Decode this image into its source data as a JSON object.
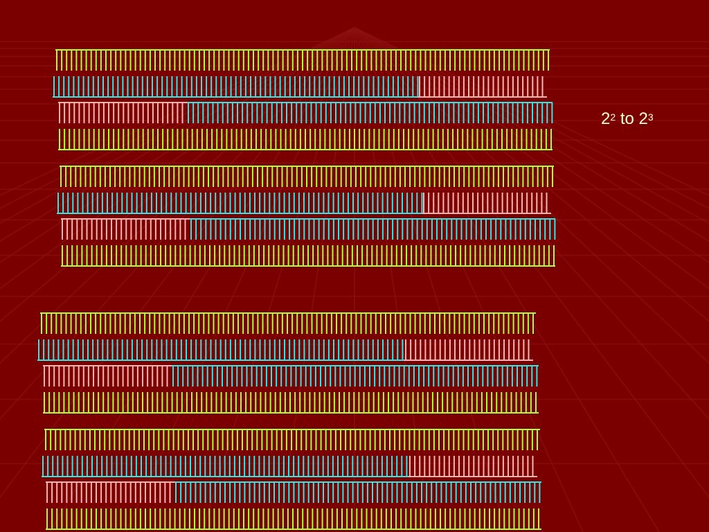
{
  "slide": {
    "title": {
      "base1": "2",
      "exp1": "2",
      "middle": " to ",
      "base2": "2",
      "exp2": "3"
    }
  },
  "colors": {
    "background": "#7a0000",
    "green": "#a8ff3c",
    "cyan": "#32e6e6",
    "pink": "#ffb4b4",
    "title_text": "#ffffcc"
  },
  "illustration": {
    "block_count": 4,
    "rows_per_block": 4,
    "row_patterns": [
      [
        {
          "color": "green",
          "teeth": "down",
          "fraction": 1.0
        }
      ],
      [
        {
          "color": "cyan",
          "teeth": "up",
          "fraction": 0.74
        },
        {
          "color": "pink",
          "teeth": "up",
          "fraction": 0.26
        }
      ],
      [
        {
          "color": "pink",
          "teeth": "down",
          "fraction": 0.26
        },
        {
          "color": "cyan",
          "teeth": "down",
          "fraction": 0.74
        }
      ],
      [
        {
          "color": "green",
          "teeth": "up",
          "fraction": 1.0
        }
      ]
    ]
  }
}
